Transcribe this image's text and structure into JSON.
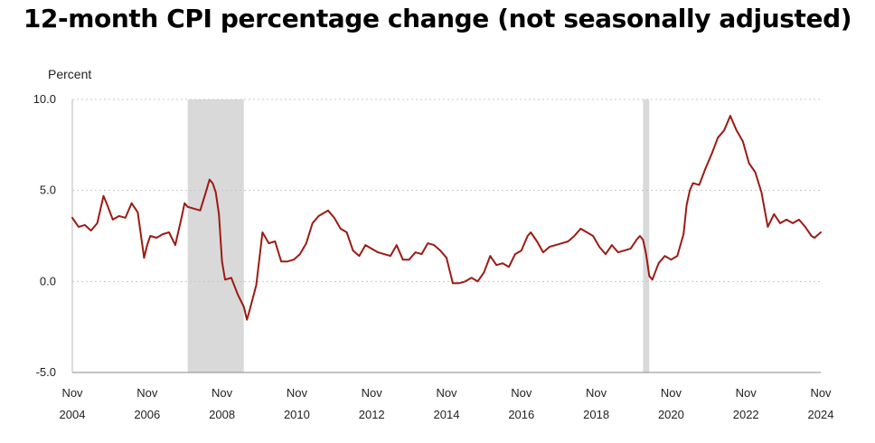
{
  "title": "12-month CPI percentage change (not seasonally adjusted)",
  "chart_data": {
    "type": "line",
    "title": "12-month CPI percentage change (not seasonally adjusted)",
    "ylabel": "Percent",
    "xlabel": "",
    "ylim": [
      -5.0,
      10.0
    ],
    "y_ticks": [
      "10.0",
      "5.0",
      "0.0",
      "-5.0"
    ],
    "y_tick_values": [
      10,
      5,
      0,
      -5
    ],
    "x_ticks": [
      {
        "month": "Nov",
        "year": "2004"
      },
      {
        "month": "Nov",
        "year": "2006"
      },
      {
        "month": "Nov",
        "year": "2008"
      },
      {
        "month": "Nov",
        "year": "2010"
      },
      {
        "month": "Nov",
        "year": "2012"
      },
      {
        "month": "Nov",
        "year": "2014"
      },
      {
        "month": "Nov",
        "year": "2016"
      },
      {
        "month": "Nov",
        "year": "2018"
      },
      {
        "month": "Nov",
        "year": "2020"
      },
      {
        "month": "Nov",
        "year": "2022"
      },
      {
        "month": "Nov",
        "year": "2024"
      }
    ],
    "x_range": [
      "2004-11",
      "2024-11"
    ],
    "grid": "horizontal dotted",
    "recessions": [
      {
        "start": "2007-12",
        "end": "2009-06"
      },
      {
        "start": "2020-02",
        "end": "2020-04"
      }
    ],
    "series_color": "#9b1b14",
    "recession_color": "#d9d9d9",
    "series": [
      {
        "name": "",
        "x": [
          "2004-11",
          "2005-01",
          "2005-03",
          "2005-05",
          "2005-07",
          "2005-09",
          "2005-10",
          "2005-12",
          "2006-02",
          "2006-04",
          "2006-06",
          "2006-08",
          "2006-10",
          "2006-11",
          "2006-12",
          "2007-02",
          "2007-04",
          "2007-06",
          "2007-08",
          "2007-10",
          "2007-11",
          "2007-12",
          "2008-02",
          "2008-04",
          "2008-06",
          "2008-07",
          "2008-08",
          "2008-09",
          "2008-10",
          "2008-11",
          "2008-12",
          "2009-02",
          "2009-04",
          "2009-06",
          "2009-07",
          "2009-08",
          "2009-10",
          "2009-12",
          "2010-02",
          "2010-04",
          "2010-06",
          "2010-08",
          "2010-10",
          "2010-12",
          "2011-02",
          "2011-04",
          "2011-06",
          "2011-09",
          "2011-11",
          "2012-01",
          "2012-03",
          "2012-05",
          "2012-07",
          "2012-09",
          "2012-11",
          "2013-01",
          "2013-03",
          "2013-05",
          "2013-07",
          "2013-09",
          "2013-11",
          "2014-01",
          "2014-03",
          "2014-05",
          "2014-07",
          "2014-09",
          "2014-11",
          "2015-01",
          "2015-03",
          "2015-05",
          "2015-07",
          "2015-09",
          "2015-11",
          "2016-01",
          "2016-03",
          "2016-05",
          "2016-07",
          "2016-09",
          "2016-11",
          "2017-01",
          "2017-02",
          "2017-04",
          "2017-06",
          "2017-08",
          "2017-10",
          "2017-12",
          "2018-02",
          "2018-04",
          "2018-06",
          "2018-08",
          "2018-10",
          "2018-12",
          "2019-02",
          "2019-04",
          "2019-06",
          "2019-08",
          "2019-10",
          "2019-12",
          "2020-01",
          "2020-02",
          "2020-03",
          "2020-04",
          "2020-05",
          "2020-07",
          "2020-09",
          "2020-11",
          "2021-01",
          "2021-03",
          "2021-04",
          "2021-05",
          "2021-06",
          "2021-08",
          "2021-10",
          "2021-12",
          "2022-02",
          "2022-04",
          "2022-06",
          "2022-08",
          "2022-10",
          "2022-12",
          "2023-02",
          "2023-04",
          "2023-06",
          "2023-08",
          "2023-10",
          "2023-12",
          "2024-02",
          "2024-04",
          "2024-06",
          "2024-08",
          "2024-09",
          "2024-11"
        ],
        "values": [
          3.5,
          3.0,
          3.1,
          2.8,
          3.2,
          4.7,
          4.3,
          3.4,
          3.6,
          3.5,
          4.3,
          3.8,
          1.3,
          2.0,
          2.5,
          2.4,
          2.6,
          2.7,
          2.0,
          3.5,
          4.3,
          4.1,
          4.0,
          3.9,
          5.0,
          5.6,
          5.4,
          4.9,
          3.7,
          1.1,
          0.1,
          0.2,
          -0.7,
          -1.4,
          -2.1,
          -1.5,
          -0.2,
          2.7,
          2.1,
          2.2,
          1.1,
          1.1,
          1.2,
          1.5,
          2.1,
          3.2,
          3.6,
          3.9,
          3.5,
          2.9,
          2.7,
          1.7,
          1.4,
          2.0,
          1.8,
          1.6,
          1.5,
          1.4,
          2.0,
          1.2,
          1.2,
          1.6,
          1.5,
          2.1,
          2.0,
          1.7,
          1.3,
          -0.1,
          -0.1,
          0.0,
          0.2,
          0.0,
          0.5,
          1.4,
          0.9,
          1.0,
          0.8,
          1.5,
          1.7,
          2.5,
          2.7,
          2.2,
          1.6,
          1.9,
          2.0,
          2.1,
          2.2,
          2.5,
          2.9,
          2.7,
          2.5,
          1.9,
          1.5,
          2.0,
          1.6,
          1.7,
          1.8,
          2.3,
          2.5,
          2.3,
          1.5,
          0.3,
          0.1,
          1.0,
          1.4,
          1.2,
          1.4,
          2.6,
          4.2,
          5.0,
          5.4,
          5.3,
          6.2,
          7.0,
          7.9,
          8.3,
          9.1,
          8.3,
          7.7,
          6.5,
          6.0,
          4.9,
          3.0,
          3.7,
          3.2,
          3.4,
          3.2,
          3.4,
          3.0,
          2.5,
          2.4,
          2.7
        ]
      }
    ]
  }
}
